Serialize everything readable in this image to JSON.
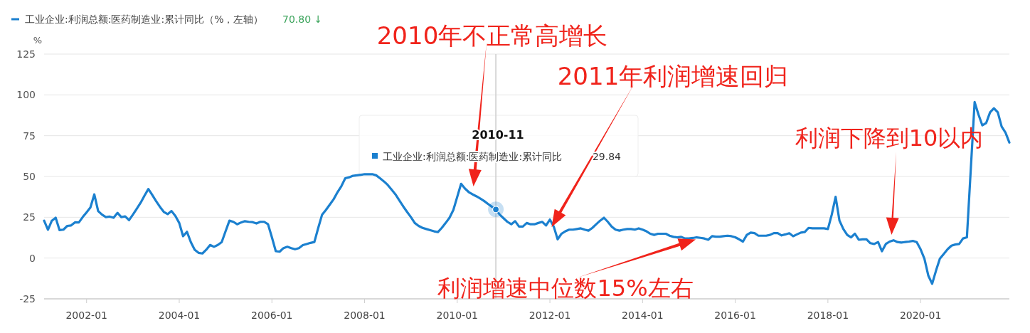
{
  "chart_data": {
    "type": "line",
    "ylabel": "%",
    "legend": "top left",
    "grid": "y",
    "marker": "none",
    "line_style": "solid",
    "xlim": [
      "2001-02",
      "2021-12"
    ],
    "xticks": [
      "2002-01",
      "2004-01",
      "2006-01",
      "2008-01",
      "2010-01",
      "2012-01",
      "2014-01",
      "2016-01",
      "2018-01",
      "2020-01"
    ],
    "ylim": [
      -25,
      125
    ],
    "yticks": [
      -25,
      0,
      25,
      50,
      75,
      100,
      125
    ],
    "ref_lines": [
      {
        "axis": "x",
        "value": "2010-11",
        "color": "#cccccc"
      }
    ],
    "annotations": [
      "2010年不正常高增长",
      "2011年利润增速回归",
      {
        "text": "利润增速中位数15%左右",
        "x": "2015-04",
        "y": 12.4
      },
      "利润下降到10以内",
      "2010-11",
      "工业企业:利润总额:医药制造业:累计同比",
      "29.84",
      "70.80 ↓"
    ],
    "series": [
      {
        "name": "工业企业:利润总额:医药制造业:累计同比（%，左轴）",
        "color": "#1b80cf",
        "x": [
          "2001-02",
          "2001-03",
          "2001-04",
          "2001-05",
          "2001-06",
          "2001-07",
          "2001-08",
          "2001-09",
          "2001-10",
          "2001-11",
          "2001-12",
          "2002-01",
          "2002-02",
          "2002-03",
          "2002-04",
          "2002-05",
          "2002-06",
          "2002-07",
          "2002-08",
          "2002-09",
          "2002-10",
          "2002-11",
          "2002-12",
          "2003-01",
          "2003-02",
          "2003-03",
          "2003-04",
          "2003-05",
          "2003-06",
          "2003-07",
          "2003-08",
          "2003-09",
          "2003-10",
          "2003-11",
          "2003-12",
          "2004-01",
          "2004-02",
          "2004-03",
          "2004-04",
          "2004-05",
          "2004-06",
          "2004-07",
          "2004-08",
          "2004-09",
          "2004-10",
          "2004-11",
          "2004-12",
          "2005-01",
          "2005-02",
          "2005-03",
          "2005-04",
          "2005-05",
          "2005-06",
          "2005-07",
          "2005-08",
          "2005-09",
          "2005-10",
          "2005-11",
          "2005-12",
          "2006-01",
          "2006-02",
          "2006-03",
          "2006-04",
          "2006-05",
          "2006-06",
          "2006-07",
          "2006-08",
          "2006-09",
          "2006-10",
          "2006-11",
          "2006-12",
          "2007-01",
          "2007-02",
          "2007-03",
          "2007-04",
          "2007-05",
          "2007-06",
          "2007-07",
          "2007-08",
          "2007-09",
          "2007-10",
          "2007-11",
          "2007-12",
          "2008-01",
          "2008-02",
          "2008-03",
          "2008-04",
          "2008-05",
          "2008-06",
          "2008-07",
          "2008-08",
          "2008-09",
          "2008-10",
          "2008-11",
          "2008-12",
          "2009-01",
          "2009-02",
          "2009-03",
          "2009-04",
          "2009-05",
          "2009-06",
          "2009-07",
          "2009-08",
          "2009-09",
          "2009-10",
          "2009-11",
          "2009-12",
          "2010-01",
          "2010-02",
          "2010-03",
          "2010-04",
          "2010-05",
          "2010-06",
          "2010-07",
          "2010-08",
          "2010-09",
          "2010-10",
          "2010-11",
          "2010-12",
          "2011-01",
          "2011-02",
          "2011-03",
          "2011-04",
          "2011-05",
          "2011-06",
          "2011-07",
          "2011-08",
          "2011-09",
          "2011-10",
          "2011-11",
          "2011-12",
          "2012-01",
          "2012-02",
          "2012-03",
          "2012-04",
          "2012-05",
          "2012-06",
          "2012-07",
          "2012-08",
          "2012-09",
          "2012-10",
          "2012-11",
          "2012-12",
          "2013-01",
          "2013-02",
          "2013-03",
          "2013-04",
          "2013-05",
          "2013-06",
          "2013-07",
          "2013-08",
          "2013-09",
          "2013-10",
          "2013-11",
          "2013-12",
          "2014-01",
          "2014-02",
          "2014-03",
          "2014-04",
          "2014-05",
          "2014-06",
          "2014-07",
          "2014-08",
          "2014-09",
          "2014-10",
          "2014-11",
          "2014-12",
          "2015-01",
          "2015-02",
          "2015-03",
          "2015-04",
          "2015-05",
          "2015-06",
          "2015-07",
          "2015-08",
          "2015-09",
          "2015-10",
          "2015-11",
          "2015-12",
          "2016-01",
          "2016-02",
          "2016-03",
          "2016-04",
          "2016-05",
          "2016-06",
          "2016-07",
          "2016-08",
          "2016-09",
          "2016-10",
          "2016-11",
          "2016-12",
          "2017-01",
          "2017-02",
          "2017-03",
          "2017-04",
          "2017-05",
          "2017-06",
          "2017-07",
          "2017-08",
          "2017-09",
          "2017-10",
          "2017-11",
          "2017-12",
          "2018-01",
          "2018-02",
          "2018-03",
          "2018-04",
          "2018-05",
          "2018-06",
          "2018-07",
          "2018-08",
          "2018-09",
          "2018-10",
          "2018-11",
          "2018-12",
          "2019-01",
          "2019-02",
          "2019-03",
          "2019-04",
          "2019-05",
          "2019-06",
          "2019-07",
          "2019-08",
          "2019-09",
          "2019-10",
          "2019-11",
          "2019-12",
          "2020-01",
          "2020-02",
          "2020-03",
          "2020-04",
          "2020-05",
          "2020-06",
          "2020-07",
          "2020-08",
          "2020-09",
          "2020-10",
          "2020-11",
          "2020-12",
          "2021-01",
          "2021-03",
          "2021-04",
          "2021-05",
          "2021-06",
          "2021-07",
          "2021-08",
          "2021-09",
          "2021-10",
          "2021-11",
          "2021-12"
        ],
        "values": [
          22.9,
          17.4,
          22.9,
          24.7,
          17.1,
          17.4,
          19.7,
          20,
          21.9,
          21.8,
          25.1,
          28,
          31,
          39,
          28.8,
          26.6,
          25.1,
          25.4,
          24.7,
          27.7,
          25.1,
          25.5,
          23.2,
          26.6,
          30.2,
          33.9,
          38.2,
          42.3,
          38.7,
          34.9,
          31.4,
          28.3,
          26.9,
          28.8,
          25.8,
          21.5,
          13.4,
          16.1,
          9.8,
          5.1,
          3.2,
          2.8,
          5.1,
          8,
          6.9,
          8,
          9.8,
          16.4,
          22.9,
          22.2,
          20.7,
          21.8,
          22.6,
          22.2,
          22,
          21.2,
          22.2,
          22.2,
          20.7,
          12.7,
          4.2,
          3.9,
          6.1,
          6.9,
          6.1,
          5.4,
          6.1,
          7.9,
          8.6,
          9.3,
          9.8,
          18.5,
          26.6,
          29.5,
          32.8,
          36.1,
          40.4,
          44.1,
          48.9,
          49.5,
          50.4,
          50.7,
          51,
          51.4,
          51.4,
          51.4,
          50.7,
          48.9,
          47,
          44.8,
          41.9,
          39,
          35.3,
          31.7,
          28.3,
          25.1,
          21.5,
          19.7,
          18.5,
          17.8,
          17.1,
          16.4,
          15.9,
          18.5,
          21.5,
          24.7,
          29.5,
          37.5,
          45.5,
          42.6,
          40.4,
          39,
          37.8,
          36.4,
          34.9,
          33.1,
          31.4,
          29.8,
          26.6,
          24.4,
          22.2,
          20.7,
          22.6,
          19.3,
          19.3,
          21.5,
          20.7,
          20.7,
          21.5,
          22.2,
          20,
          23.6,
          19.3,
          11.5,
          14.9,
          16.4,
          17.4,
          17.4,
          17.8,
          18.2,
          17.4,
          16.8,
          18.5,
          20.7,
          22.9,
          24.7,
          22.2,
          19.3,
          17.4,
          16.8,
          17.4,
          17.8,
          17.8,
          17.4,
          18.2,
          17.4,
          16.4,
          14.9,
          14.2,
          14.9,
          14.9,
          14.9,
          13.7,
          13,
          12.7,
          13,
          12,
          12,
          12.3,
          12.7,
          12.4,
          12,
          11.2,
          13.4,
          13.1,
          13.1,
          13.4,
          13.7,
          13.4,
          12.7,
          11.5,
          10.1,
          14.2,
          15.6,
          15.3,
          13.7,
          13.7,
          13.7,
          14.2,
          15.3,
          15.3,
          13.9,
          14.5,
          15.2,
          13.4,
          14.5,
          15.6,
          15.9,
          18.5,
          18.2,
          18.2,
          18.2,
          18.2,
          17.8,
          26.6,
          37.5,
          22.9,
          17.8,
          14.2,
          12.7,
          14.9,
          11.2,
          11.5,
          11.5,
          9.1,
          8.6,
          9.8,
          4.2,
          8.6,
          10.1,
          10.9,
          9.8,
          9.5,
          9.8,
          10.1,
          10.5,
          9.8,
          5.4,
          -0.4,
          -10.7,
          -15.8,
          -7.7,
          -0.4,
          2.5,
          5.4,
          7.6,
          8.3,
          8.6,
          12,
          12.7,
          95.6,
          87.9,
          81.3,
          82.8,
          89.3,
          91.8,
          89.3,
          80.6,
          76.9,
          70.8
        ]
      }
    ]
  }
}
